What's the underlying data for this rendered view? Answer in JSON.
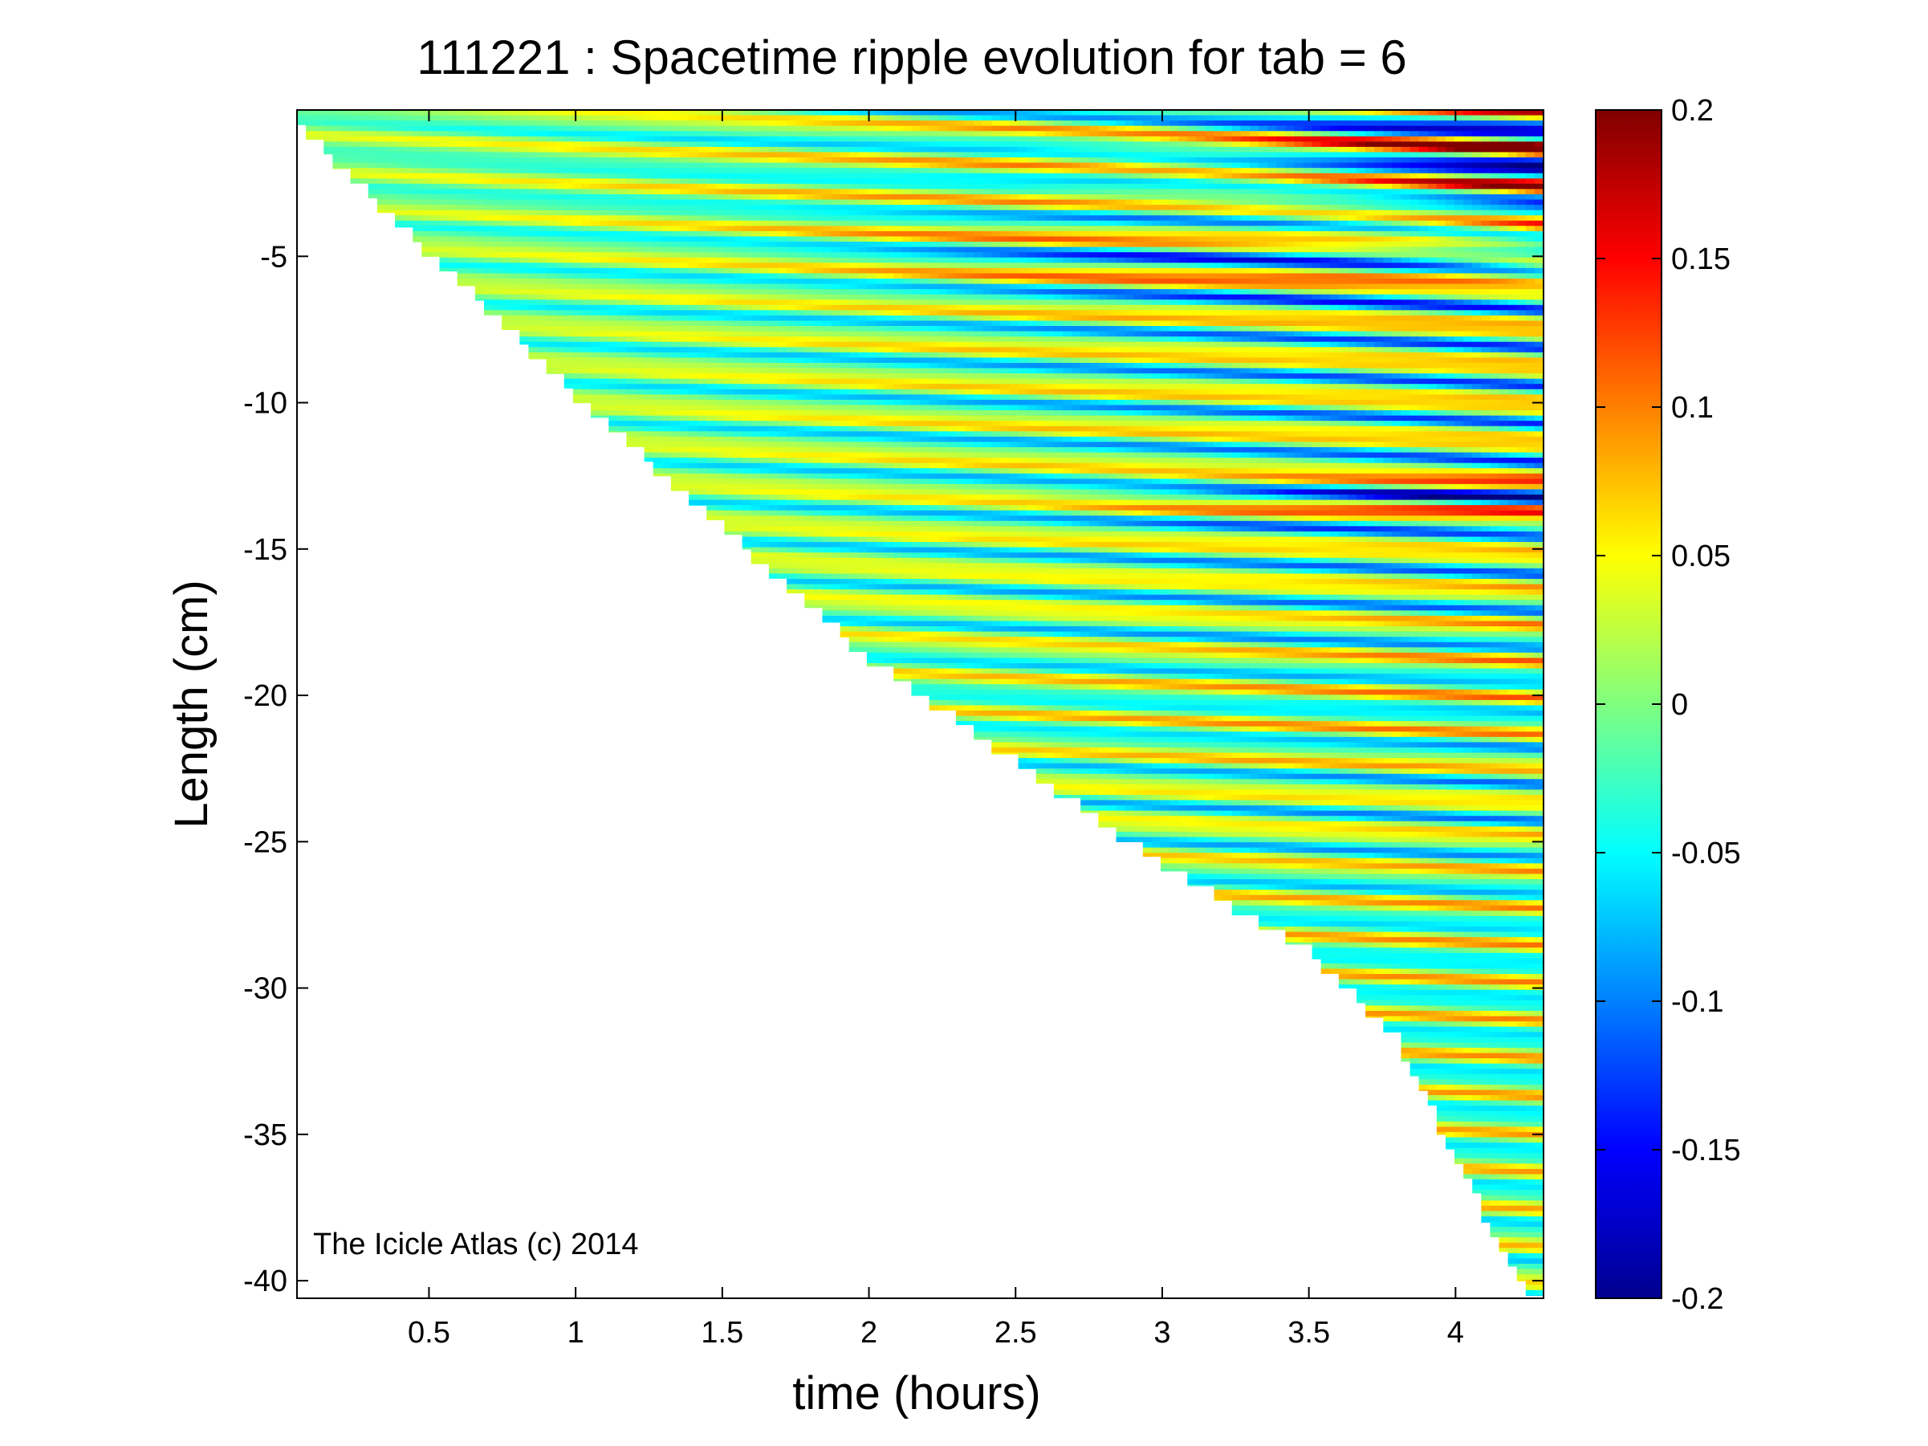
{
  "chart_data": {
    "type": "heatmap",
    "title": "111221 : Spacetime ripple evolution for tab = 6",
    "xlabel": "time (hours)",
    "ylabel": "Length (cm)",
    "xlim": [
      0.05,
      4.3
    ],
    "ylim": [
      -40.6,
      0.0
    ],
    "xticks": [
      0.5,
      1,
      1.5,
      2,
      2.5,
      3,
      3.5,
      4
    ],
    "xtick_labels": [
      "0.5",
      "1",
      "1.5",
      "2",
      "2.5",
      "3",
      "3.5",
      "4"
    ],
    "yticks": [
      -5,
      -10,
      -15,
      -20,
      -25,
      -30,
      -35,
      -40
    ],
    "ytick_labels": [
      "-5",
      "-10",
      "-15",
      "-20",
      "-25",
      "-30",
      "-35",
      "-40"
    ],
    "colorbar": {
      "colormap": "jet",
      "clim": [
        -0.2,
        0.2
      ],
      "ticks": [
        0.2,
        0.15,
        0.1,
        0.05,
        0,
        -0.05,
        -0.1,
        -0.15,
        -0.2
      ],
      "tick_labels": [
        "0.2",
        "0.15",
        "0.1",
        "0.05",
        "0",
        "-0.05",
        "-0.1",
        "-0.15",
        "-0.2"
      ]
    },
    "data_boundary": {
      "description_free": true,
      "points": [
        [
          0.05,
          -0.2
        ],
        [
          1.0,
          -9.5
        ],
        [
          2.0,
          -18.5
        ],
        [
          3.0,
          -25.5
        ],
        [
          3.5,
          -28.5
        ],
        [
          3.8,
          -31.5
        ],
        [
          4.0,
          -35.5
        ],
        [
          4.2,
          -39.5
        ],
        [
          4.3,
          -40.6
        ]
      ]
    },
    "grid": false,
    "legend": "none"
  },
  "annotation": {
    "credit": "The Icicle Atlas (c) 2014"
  }
}
